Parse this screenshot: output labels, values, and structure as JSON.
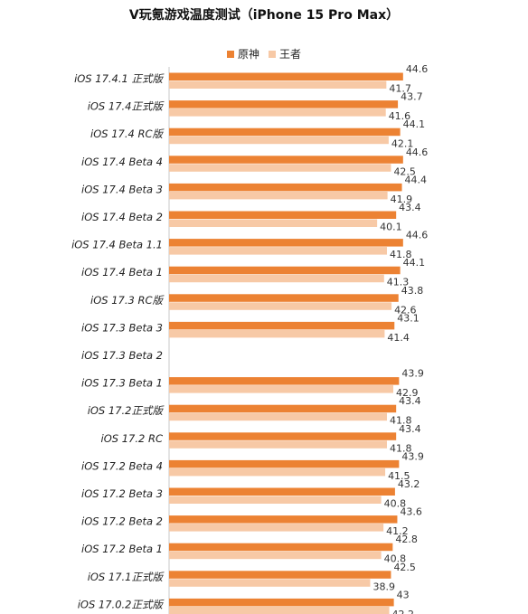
{
  "chart_data": {
    "type": "bar",
    "orientation": "horizontal",
    "title": "V玩氪游戏温度测试（iPhone 15 Pro Max）",
    "legend_position": "top-center",
    "grid": false,
    "categories": [
      "iOS 17.4.1 正式版",
      "iOS 17.4正式版",
      "iOS 17.4 RC版",
      "iOS 17.4 Beta 4",
      "iOS 17.4 Beta 3",
      "iOS 17.4 Beta 2",
      "iOS 17.4 Beta 1.1",
      "iOS 17.4 Beta 1",
      "iOS 17.3 RC版",
      "iOS 17.3 Beta 3",
      "iOS 17.3 Beta 2",
      "iOS 17.3 Beta 1",
      "iOS 17.2正式版",
      "iOS 17.2 RC",
      "iOS 17.2 Beta 4",
      "iOS 17.2 Beta 3",
      "iOS 17.2 Beta 2",
      "iOS 17.2 Beta 1",
      "iOS 17.1正式版",
      "iOS 17.0.2正式版"
    ],
    "series": [
      {
        "name": "原神",
        "color": "#ec8233",
        "values": [
          44.6,
          43.7,
          44.1,
          44.6,
          44.4,
          43.4,
          44.6,
          44.1,
          43.8,
          43.1,
          null,
          43.9,
          43.4,
          43.4,
          43.9,
          43.2,
          43.6,
          42.8,
          42.5,
          43
        ]
      },
      {
        "name": "王者",
        "color": "#f7c9a6",
        "values": [
          41.7,
          41.6,
          42.1,
          42.5,
          41.9,
          40.1,
          41.8,
          41.3,
          42.6,
          41.4,
          null,
          42.9,
          41.8,
          41.8,
          41.5,
          40.8,
          41.2,
          40.8,
          38.9,
          42.2
        ]
      }
    ]
  }
}
